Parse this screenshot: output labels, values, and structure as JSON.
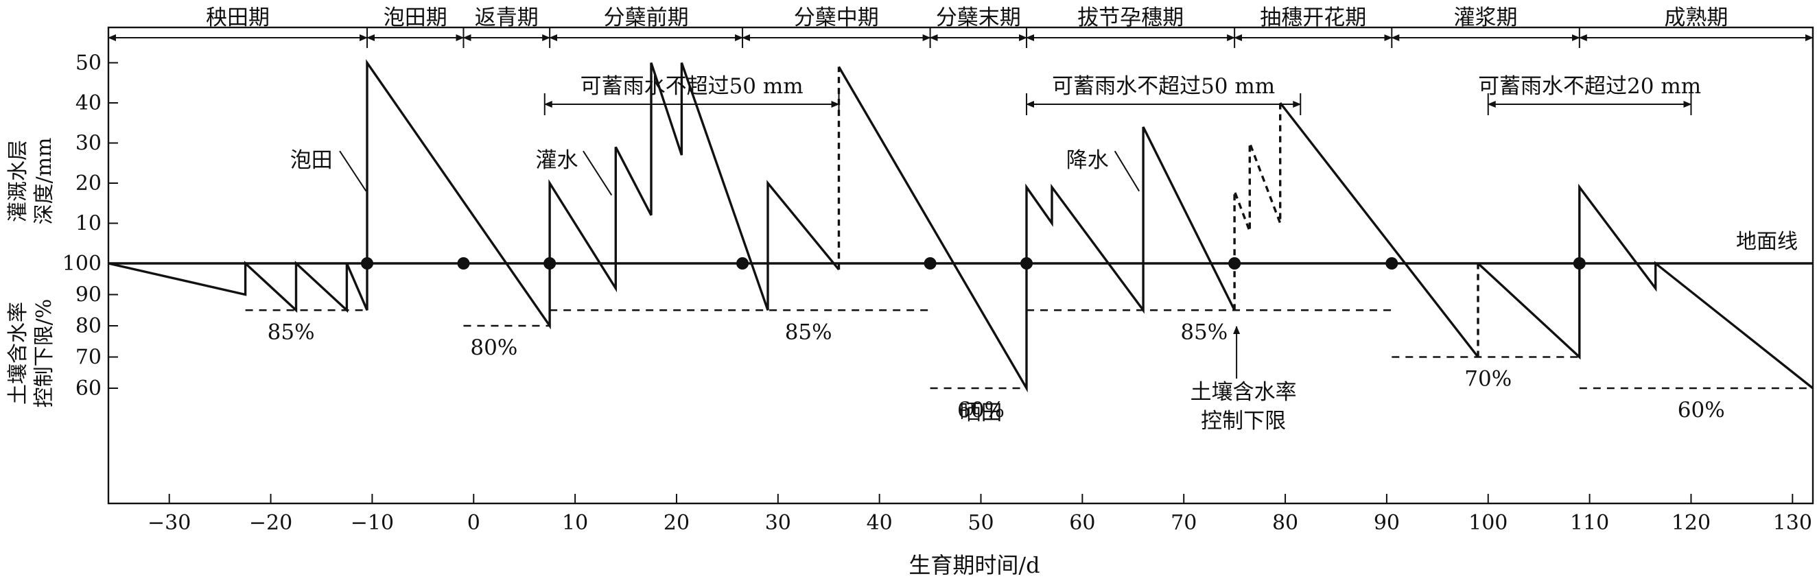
{
  "chart_data": {
    "type": "line",
    "stages": [
      {
        "name": "秧田期",
        "from": -36,
        "to": -10.5
      },
      {
        "name": "泡田期",
        "from": -10.5,
        "to": -1
      },
      {
        "name": "返青期",
        "from": -1,
        "to": 7.5
      },
      {
        "name": "分蘖前期",
        "from": 7.5,
        "to": 26.5
      },
      {
        "name": "分蘖中期",
        "from": 26.5,
        "to": 45
      },
      {
        "name": "分蘖末期",
        "from": 45,
        "to": 54.5
      },
      {
        "name": "拔节孕穗期",
        "from": 54.5,
        "to": 75
      },
      {
        "name": "抽穗开花期",
        "from": 75,
        "to": 90.5
      },
      {
        "name": "灌浆期",
        "from": 90.5,
        "to": 109
      },
      {
        "name": "成熟期",
        "from": 109,
        "to": 132
      }
    ],
    "x_axis": {
      "label": "生育期时间/d",
      "range": [
        -36,
        132
      ],
      "ticks": [
        -30,
        -20,
        -10,
        0,
        10,
        20,
        30,
        40,
        50,
        60,
        70,
        80,
        90,
        100,
        110,
        120,
        130
      ]
    },
    "y_axis_upper": {
      "label_lines": [
        "灌溉水层",
        "深度/mm"
      ],
      "ticks": [
        10,
        20,
        30,
        40,
        50
      ]
    },
    "y_axis_lower": {
      "label_lines": [
        "土壤含水率",
        "控制下限/%"
      ],
      "ticks": [
        100,
        90,
        80,
        70,
        60
      ]
    },
    "ground_line_label": "地面线",
    "series": [
      {
        "points": [
          {
            "x": -36,
            "v": 0
          },
          {
            "x": -22.5,
            "v": -10
          },
          {
            "x": -22.5,
            "v": 0
          },
          {
            "x": -17.5,
            "v": -15
          },
          {
            "x": -17.5,
            "v": 0
          },
          {
            "x": -12.5,
            "v": -15
          },
          {
            "x": -12.5,
            "v": 0
          },
          {
            "x": -10.5,
            "v": -15
          },
          {
            "x": -10.5,
            "v": 50
          },
          {
            "x": 7.5,
            "v": -20
          },
          {
            "x": 7.5,
            "v": 20
          },
          {
            "x": 14,
            "v": -8
          },
          {
            "x": 14,
            "v": 29
          },
          {
            "x": 17.5,
            "v": 12
          },
          {
            "x": 17.5,
            "v": 50
          },
          {
            "x": 20.5,
            "v": 27
          },
          {
            "x": 20.5,
            "v": 50
          },
          {
            "x": 29,
            "v": -15
          },
          {
            "x": 29,
            "v": 20
          },
          {
            "x": 36,
            "v": -2
          }
        ]
      },
      {
        "points": [
          {
            "x": 36,
            "v": 49
          },
          {
            "x": 54.5,
            "v": -40
          },
          {
            "x": 54.5,
            "v": 19
          },
          {
            "x": 57,
            "v": 10
          },
          {
            "x": 57,
            "v": 19
          },
          {
            "x": 66,
            "v": -15
          },
          {
            "x": 66,
            "v": 34
          },
          {
            "x": 75,
            "v": -15
          }
        ]
      },
      {
        "points": [
          {
            "x": 79.5,
            "v": 40
          },
          {
            "x": 99,
            "v": -30
          }
        ]
      },
      {
        "points": [
          {
            "x": 99,
            "v": 0
          },
          {
            "x": 109,
            "v": -30
          },
          {
            "x": 109,
            "v": 19
          },
          {
            "x": 116.5,
            "v": -8
          },
          {
            "x": 116.5,
            "v": 0
          },
          {
            "x": 132,
            "v": -40
          }
        ]
      }
    ],
    "dashed_rises": [
      {
        "points": [
          {
            "x": 36,
            "v": -2
          },
          {
            "x": 36,
            "v": 49
          }
        ]
      },
      {
        "points": [
          {
            "x": 75,
            "v": -15
          },
          {
            "x": 75,
            "v": 18
          },
          {
            "x": 76.5,
            "v": 8
          },
          {
            "x": 76.5,
            "v": 30
          },
          {
            "x": 79.5,
            "v": 10
          },
          {
            "x": 79.5,
            "v": 40
          }
        ]
      },
      {
        "points": [
          {
            "x": 99,
            "v": -30
          },
          {
            "x": 99,
            "v": 0
          }
        ]
      }
    ],
    "stage_boundary_dots": [
      -10.5,
      -1,
      7.5,
      26.5,
      45,
      54.5,
      75,
      90.5,
      109
    ],
    "lower_limits": [
      {
        "label": "85%",
        "v": -15,
        "from": -22.5,
        "to": -10.5,
        "label_x": -18
      },
      {
        "label": "80%",
        "v": -20,
        "from": -1,
        "to": 7.5,
        "label_x": 2
      },
      {
        "label": "85%",
        "v": -15,
        "from": 7.5,
        "to": 45,
        "label_x": 33
      },
      {
        "label": "60%",
        "v": -40,
        "from": 45,
        "to": 54.5,
        "label_x": 50
      },
      {
        "label": "85%",
        "v": -15,
        "from": 54.5,
        "to": 90.5,
        "label_x": 72
      },
      {
        "label": "70%",
        "v": -30,
        "from": 90.5,
        "to": 109,
        "label_x": 100
      },
      {
        "label": "60%",
        "v": -40,
        "from": 109,
        "to": 132,
        "label_x": 121
      }
    ],
    "storage_spans": [
      {
        "label": "可蓄雨水不超过50 mm",
        "from": 7,
        "to": 36,
        "label_x": 21.5
      },
      {
        "label": "可蓄雨水不超过50 mm",
        "from": 54.5,
        "to": 81.5,
        "label_x": 68
      },
      {
        "label": "可蓄雨水不超过20 mm",
        "from": 100,
        "to": 120,
        "label_x": 110
      }
    ],
    "annotations": [
      {
        "label": "泡田",
        "text_x": -16,
        "text_v": 26,
        "pointer": {
          "x1": -13.2,
          "v1": 28,
          "x2": -10.6,
          "v2": 18
        }
      },
      {
        "label": "灌水",
        "text_x": 8.2,
        "text_v": 26,
        "pointer": {
          "x1": 10.8,
          "v1": 28,
          "x2": 13.6,
          "v2": 17
        }
      },
      {
        "label": "降水",
        "text_x": 60.5,
        "text_v": 26,
        "pointer": {
          "x1": 63.2,
          "v1": 28,
          "x2": 65.6,
          "v2": 18
        }
      },
      {
        "label": "晒田",
        "text_x": 50,
        "text_v": -47.5,
        "pointer": null
      }
    ],
    "soil_limit_note": {
      "lines": [
        "土壤含水率",
        "控制下限"
      ],
      "arrow_x": 75.2
    }
  }
}
